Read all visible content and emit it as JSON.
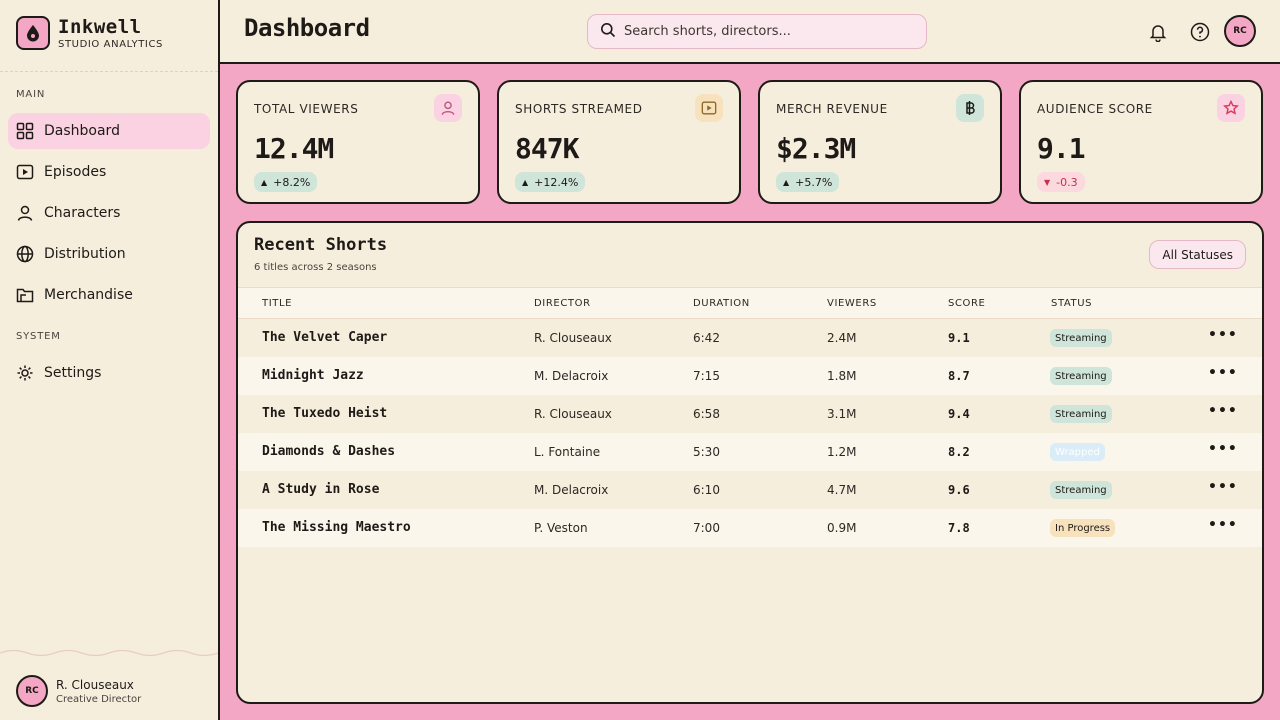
{
  "brand": {
    "name": "Inkwell",
    "subtitle": "STUDIO ANALYTICS"
  },
  "sidebar": {
    "sections": {
      "main": "MAIN",
      "system": "SYSTEM"
    },
    "items": [
      {
        "label": "Dashboard",
        "icon": "grid-icon",
        "active": true
      },
      {
        "label": "Episodes",
        "icon": "play-icon"
      },
      {
        "label": "Characters",
        "icon": "user-icon"
      },
      {
        "label": "Distribution",
        "icon": "globe-icon"
      },
      {
        "label": "Merchandise",
        "icon": "folder-icon"
      },
      {
        "label": "Settings",
        "icon": "gear-icon"
      }
    ],
    "profile": {
      "initials": "RC",
      "name": "R. Clouseaux",
      "role": "Creative Director"
    }
  },
  "header": {
    "title": "Dashboard",
    "search_placeholder": "Search shorts, directors...",
    "avatar_initials": "RC"
  },
  "stats": [
    {
      "label": "TOTAL VIEWERS",
      "value": "12.4M",
      "delta": "+8.2%",
      "trend": "up",
      "icon": "user-icon",
      "icon_bg": "#fbd2e1"
    },
    {
      "label": "SHORTS STREAMED",
      "value": "847K",
      "delta": "+12.4%",
      "trend": "up",
      "icon": "play-icon",
      "icon_bg": "#f8e2bd"
    },
    {
      "label": "MERCH REVENUE",
      "value": "$2.3M",
      "delta": "+5.7%",
      "trend": "up",
      "icon": "baht-icon",
      "icon_bg": "#cfe5d9"
    },
    {
      "label": "AUDIENCE SCORE",
      "value": "9.1",
      "delta": "-0.3",
      "trend": "down",
      "icon": "star-icon",
      "icon_bg": "#fbd2e1"
    }
  ],
  "table": {
    "title": "Recent Shorts",
    "subtitle": "6 titles across 2 seasons",
    "filter_label": "All Statuses",
    "columns": [
      "TITLE",
      "DIRECTOR",
      "DURATION",
      "VIEWERS",
      "SCORE",
      "STATUS"
    ],
    "rows": [
      {
        "title": "The Velvet Caper",
        "director": "R. Clouseaux",
        "duration": "6:42",
        "viewers": "2.4M",
        "score": "9.1",
        "status": "Streaming"
      },
      {
        "title": "Midnight Jazz",
        "director": "M. Delacroix",
        "duration": "7:15",
        "viewers": "1.8M",
        "score": "8.7",
        "status": "Streaming"
      },
      {
        "title": "The Tuxedo Heist",
        "director": "R. Clouseaux",
        "duration": "6:58",
        "viewers": "3.1M",
        "score": "9.4",
        "status": "Streaming"
      },
      {
        "title": "Diamonds & Dashes",
        "director": "L. Fontaine",
        "duration": "5:30",
        "viewers": "1.2M",
        "score": "8.2",
        "status": "Wrapped"
      },
      {
        "title": "A Study in Rose",
        "director": "M. Delacroix",
        "duration": "6:10",
        "viewers": "4.7M",
        "score": "9.6",
        "status": "Streaming"
      },
      {
        "title": "The Missing Maestro",
        "director": "P. Veston",
        "duration": "7:00",
        "viewers": "0.9M",
        "score": "7.8",
        "status": "In Progress"
      }
    ]
  },
  "colors": {
    "accent": "#f4a7c4",
    "ink": "#1d1a17",
    "paper": "#f6eedd",
    "positive": "#cfe5d9",
    "negative": "#c8304a"
  }
}
